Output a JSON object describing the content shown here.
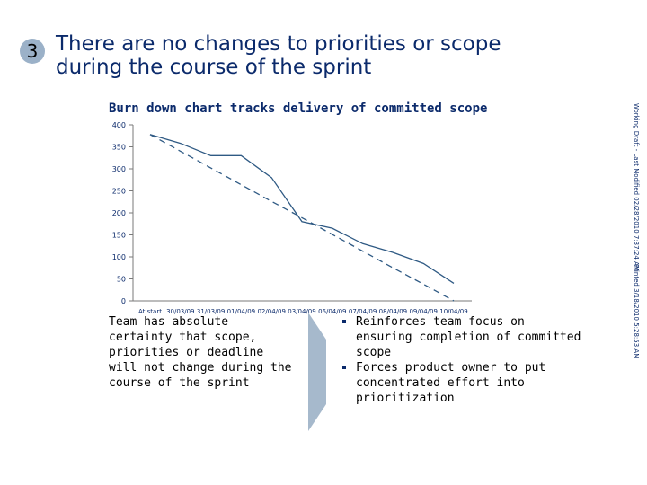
{
  "slide": {
    "number": "3",
    "title_line1": "There are no changes to priorities or scope",
    "title_line2": "during the course of the sprint",
    "left_text": "Team has absolute certainty that scope, priorities or deadline will not change during the course of the sprint",
    "bullets": [
      "Reinforces team focus on ensuring completion of committed scope",
      "Forces product owner to put concentrated effort into prioritization"
    ],
    "side_note_1": "Working Draft - Last Modified 02/28/2010 7:37:24 AM",
    "side_note_2": "Printed 3/18/2010 5:28:53 AM"
  },
  "chart_data": {
    "type": "line",
    "title": "Burn down chart tracks delivery of committed scope",
    "categories": [
      "At start",
      "30/03/09",
      "31/03/09",
      "01/04/09",
      "02/04/09",
      "03/04/09",
      "06/04/09",
      "07/04/09",
      "08/04/09",
      "09/04/09",
      "10/04/09"
    ],
    "series": [
      {
        "values": [
          378,
          358,
          330,
          330,
          280,
          180,
          165,
          130,
          110,
          85,
          40
        ],
        "color": "#2f5a84",
        "style": "solid"
      },
      {
        "values": [
          378,
          340,
          302,
          264,
          226,
          189,
          151,
          113,
          75,
          38,
          0
        ],
        "color": "#2f5a84",
        "style": "dashed"
      }
    ],
    "yticks": [
      0,
      50,
      100,
      150,
      200,
      250,
      300,
      350,
      400
    ],
    "ylim": [
      0,
      400
    ],
    "xlabel": "",
    "ylabel": "",
    "grid": false,
    "legend": "none"
  }
}
